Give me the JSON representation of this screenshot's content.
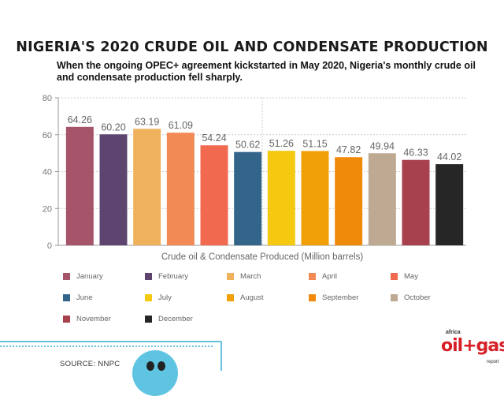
{
  "title": "NIGERIA'S 2020 CRUDE OIL AND CONDENSATE PRODUCTION",
  "subtitle": "When the ongoing OPEC+ agreement kickstarted in May 2020, Nigeria's monthly crude oil and condensate production fell sharply.",
  "source": "SOURCE: NNPC",
  "logo": {
    "prefix": "africa",
    "brand": "oil+gas",
    "suffix": "report"
  },
  "colors": {
    "January": "#a5546a",
    "February": "#5d4570",
    "March": "#f0b15d",
    "April": "#f28a55",
    "May": "#f16a50",
    "June": "#33658a",
    "July": "#f5c90f",
    "August": "#f2a007",
    "September": "#f08a0a",
    "October": "#bea993",
    "November": "#a7414d",
    "December": "#262626"
  },
  "chart_data": {
    "type": "bar",
    "categories": [
      "January",
      "February",
      "March",
      "April",
      "May",
      "June",
      "July",
      "August",
      "September",
      "October",
      "November",
      "December"
    ],
    "values": [
      64.26,
      60.2,
      63.19,
      61.09,
      54.24,
      50.62,
      51.26,
      51.15,
      47.82,
      49.94,
      46.33,
      44.02
    ],
    "value_labels": [
      "64.26",
      "60.20",
      "63.19",
      "61.09",
      "54.24",
      "50.62",
      "51.26",
      "51.15",
      "47.82",
      "49.94",
      "46.33",
      "44.02"
    ],
    "xlabel": "Crude oil & Condensate Produced (Million barrels)",
    "ylabel": "",
    "ylim": [
      0,
      80
    ],
    "yticks": [
      "0",
      "20",
      "40",
      "60",
      "80"
    ],
    "grid": true,
    "legend": "bottom"
  }
}
